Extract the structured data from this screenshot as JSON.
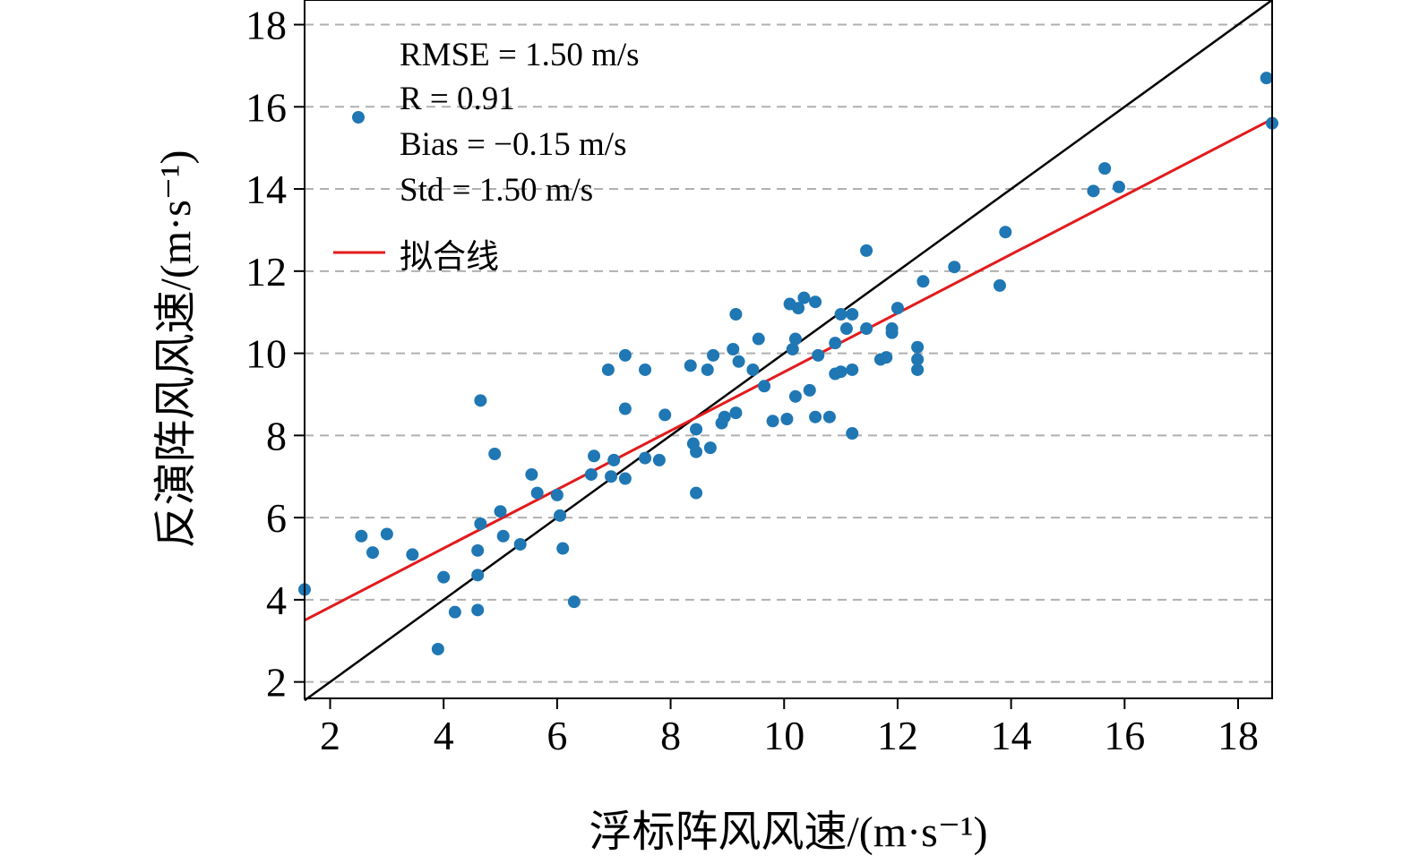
{
  "chart_data": {
    "type": "scatter",
    "xlabel": "浮标阵风风速/(m·s⁻¹)",
    "ylabel": "反演阵风风速/(m·s⁻¹)",
    "xlim": [
      1.55,
      18.6
    ],
    "ylim": [
      1.6,
      18.6
    ],
    "xticks": [
      "2",
      "4",
      "6",
      "8",
      "10",
      "12",
      "14",
      "16",
      "18"
    ],
    "yticks": [
      "2",
      "4",
      "6",
      "8",
      "10",
      "12",
      "14",
      "16",
      "18"
    ],
    "grid": "horizontal dashed, gray",
    "point_color": "#1f77b4",
    "fit_color": "#e31a1c",
    "identity_color": "#000000",
    "legend": {
      "placement": "top-left",
      "stats": [
        "RMSE = 1.50 m/s",
        "R = 0.91",
        "Bias = −0.15 m/s",
        "Std = 1.50 m/s"
      ],
      "fit_label": "拟合线"
    },
    "fit_line": {
      "x": [
        1.55,
        18.6
      ],
      "y": [
        3.5,
        15.7
      ]
    },
    "identity_line": {
      "x": [
        1.55,
        18.6
      ],
      "y": [
        1.55,
        18.6
      ]
    },
    "points": [
      [
        1.55,
        4.25
      ],
      [
        2.55,
        5.55
      ],
      [
        2.75,
        5.15
      ],
      [
        3.0,
        5.6
      ],
      [
        3.45,
        5.1
      ],
      [
        3.9,
        2.8
      ],
      [
        4.0,
        4.55
      ],
      [
        4.2,
        3.7
      ],
      [
        4.6,
        3.75
      ],
      [
        4.6,
        4.6
      ],
      [
        4.6,
        5.2
      ],
      [
        4.65,
        5.85
      ],
      [
        4.65,
        8.85
      ],
      [
        4.9,
        7.55
      ],
      [
        5.0,
        6.15
      ],
      [
        5.05,
        5.55
      ],
      [
        5.35,
        5.35
      ],
      [
        5.55,
        7.05
      ],
      [
        5.65,
        6.6
      ],
      [
        6.0,
        6.55
      ],
      [
        6.05,
        6.05
      ],
      [
        6.1,
        5.25
      ],
      [
        6.3,
        3.95
      ],
      [
        6.6,
        7.05
      ],
      [
        6.65,
        7.5
      ],
      [
        6.9,
        9.6
      ],
      [
        6.95,
        7.0
      ],
      [
        7.0,
        7.4
      ],
      [
        7.2,
        6.95
      ],
      [
        7.2,
        8.65
      ],
      [
        7.2,
        9.95
      ],
      [
        7.55,
        7.45
      ],
      [
        7.55,
        9.6
      ],
      [
        7.8,
        7.4
      ],
      [
        7.9,
        8.5
      ],
      [
        8.35,
        9.7
      ],
      [
        8.4,
        7.8
      ],
      [
        8.45,
        8.15
      ],
      [
        8.45,
        7.6
      ],
      [
        8.45,
        6.6
      ],
      [
        8.65,
        9.6
      ],
      [
        8.7,
        7.7
      ],
      [
        8.75,
        9.95
      ],
      [
        8.9,
        8.3
      ],
      [
        8.95,
        8.45
      ],
      [
        9.1,
        10.1
      ],
      [
        9.15,
        8.55
      ],
      [
        9.15,
        10.95
      ],
      [
        9.2,
        9.8
      ],
      [
        9.45,
        9.6
      ],
      [
        9.55,
        10.35
      ],
      [
        9.65,
        9.2
      ],
      [
        9.8,
        8.35
      ],
      [
        10.05,
        8.4
      ],
      [
        10.1,
        11.2
      ],
      [
        10.15,
        10.1
      ],
      [
        10.2,
        8.95
      ],
      [
        10.2,
        10.35
      ],
      [
        10.25,
        11.1
      ],
      [
        10.35,
        11.35
      ],
      [
        10.45,
        9.1
      ],
      [
        10.55,
        11.25
      ],
      [
        10.55,
        8.45
      ],
      [
        10.6,
        9.95
      ],
      [
        10.8,
        8.45
      ],
      [
        10.9,
        9.5
      ],
      [
        10.9,
        10.25
      ],
      [
        11.0,
        9.55
      ],
      [
        11.0,
        10.95
      ],
      [
        11.1,
        10.6
      ],
      [
        11.2,
        9.6
      ],
      [
        11.2,
        10.95
      ],
      [
        11.2,
        8.05
      ],
      [
        11.45,
        10.6
      ],
      [
        11.45,
        12.5
      ],
      [
        11.7,
        9.85
      ],
      [
        11.8,
        9.9
      ],
      [
        11.9,
        10.5
      ],
      [
        11.9,
        10.6
      ],
      [
        12.0,
        11.1
      ],
      [
        12.35,
        9.6
      ],
      [
        12.35,
        9.85
      ],
      [
        12.35,
        10.15
      ],
      [
        12.45,
        11.75
      ],
      [
        13.0,
        12.1
      ],
      [
        13.8,
        11.65
      ],
      [
        13.9,
        12.95
      ],
      [
        15.45,
        13.95
      ],
      [
        15.65,
        14.5
      ],
      [
        15.9,
        14.05
      ],
      [
        18.5,
        16.7
      ],
      [
        18.6,
        15.6
      ]
    ]
  }
}
